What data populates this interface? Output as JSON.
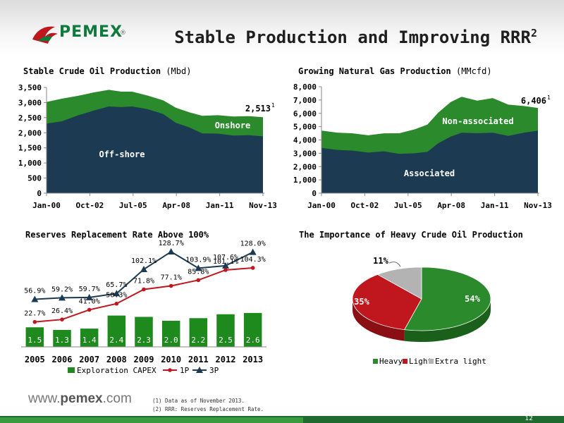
{
  "header": {
    "logo_text": "PEMEX",
    "logo_reg": "®",
    "title": "Stable Production and Improving RRR",
    "title_sup": "2"
  },
  "colors": {
    "navy": "#1c3a52",
    "green": "#2b8a2b",
    "red": "#c0161d",
    "grey": "#b3b3b3",
    "bar_green": "#1e8a1e"
  },
  "chart_data": [
    {
      "id": "crude",
      "type": "area",
      "title": "Stable Crude Oil Production",
      "unit": "(Mbd)",
      "ylim": [
        0,
        3500
      ],
      "yticks": [
        "0",
        "500",
        "1,000",
        "1,500",
        "2,000",
        "2,500",
        "3,000",
        "3,500"
      ],
      "ytick_values": [
        0,
        500,
        1000,
        1500,
        2000,
        2500,
        3000,
        3500
      ],
      "xticks": [
        "Jan-00",
        "Oct-02",
        "Jul-05",
        "Apr-08",
        "Jan-11",
        "Nov-13"
      ],
      "x": [
        2000.0,
        2001.0,
        2002.0,
        2003.0,
        2004.0,
        2004.8,
        2005.5,
        2006.5,
        2007.5,
        2008.3,
        2009.2,
        2010.0,
        2011.0,
        2012.0,
        2013.0,
        2013.9
      ],
      "series": [
        {
          "name": "Off-shore",
          "values": [
            2300,
            2400,
            2550,
            2750,
            2850,
            2870,
            2850,
            2800,
            2600,
            2350,
            2150,
            2000,
            1950,
            1930,
            1900,
            1880
          ]
        },
        {
          "name": "Onshore",
          "values": [
            3020,
            3150,
            3200,
            3350,
            3400,
            3380,
            3340,
            3250,
            3050,
            2850,
            2650,
            2580,
            2560,
            2560,
            2530,
            2513
          ]
        }
      ],
      "annotation": {
        "value": "2,513",
        "sup": "1"
      }
    },
    {
      "id": "gas",
      "type": "area",
      "title": "Growing Natural Gas Production",
      "unit": "(MMcfd)",
      "ylim": [
        0,
        8000
      ],
      "yticks": [
        "0",
        "1,000",
        "2,000",
        "3,000",
        "4,000",
        "5,000",
        "6,000",
        "7,000",
        "8,000"
      ],
      "ytick_values": [
        0,
        1000,
        2000,
        3000,
        4000,
        5000,
        6000,
        7000,
        8000
      ],
      "xticks": [
        "Jan-00",
        "Oct-02",
        "Jul-05",
        "Apr-08",
        "Jan-11",
        "Nov-13"
      ],
      "x": [
        2000.0,
        2001.0,
        2002.0,
        2003.0,
        2004.0,
        2005.0,
        2006.0,
        2006.8,
        2007.5,
        2008.3,
        2009.0,
        2010.0,
        2011.0,
        2012.0,
        2013.0,
        2013.9
      ],
      "series": [
        {
          "name": "Associated",
          "values": [
            3400,
            3300,
            3150,
            3100,
            3100,
            3000,
            2950,
            3150,
            3700,
            4300,
            4500,
            4550,
            4500,
            4350,
            4500,
            4700
          ]
        },
        {
          "name": "Non-associated",
          "values": [
            4700,
            4600,
            4450,
            4400,
            4450,
            4550,
            4750,
            5200,
            6000,
            6900,
            7200,
            7000,
            7100,
            6700,
            6500,
            6406
          ]
        }
      ],
      "annotation": {
        "value": "6,406",
        "sup": "1"
      }
    },
    {
      "id": "rrr",
      "type": "bar",
      "title": "Reserves Replacement Rate Above 100%",
      "categories": [
        "2005",
        "2006",
        "2007",
        "2008",
        "2009",
        "2010",
        "2011",
        "2012",
        "2013"
      ],
      "series": [
        {
          "name": "Exploration CAPEX",
          "kind": "bar",
          "values": [
            1.5,
            1.3,
            1.4,
            2.4,
            2.3,
            2.0,
            2.2,
            2.5,
            2.6
          ],
          "labels": [
            "1.5",
            "1.3",
            "1.4",
            "2.4",
            "2.3",
            "2.0",
            "2.2",
            "2.5",
            "2.6"
          ]
        },
        {
          "name": "1P",
          "kind": "line",
          "values": [
            22.7,
            26.4,
            41.0,
            50.3,
            71.8,
            77.1,
            85.8,
            101.1,
            104.3
          ],
          "labels": [
            "22.7%",
            "26.4%",
            "41.0%",
            "50.3%",
            "71.8%",
            "77.1%",
            "85.8%",
            "101.1%",
            "104.3%"
          ]
        },
        {
          "name": "3P",
          "kind": "line",
          "values": [
            56.9,
            59.2,
            59.7,
            65.7,
            102.1,
            128.7,
            103.9,
            107.6,
            128.0
          ],
          "labels": [
            "56.9%",
            "59.2%",
            "59.7%",
            "65.7%",
            "102.1%",
            "128.7%",
            "103.9%",
            "107.6%",
            "128.0%"
          ]
        }
      ]
    },
    {
      "id": "heavy",
      "type": "pie",
      "title": "The Importance of Heavy Crude Oil Production",
      "labels": [
        "Heavy",
        "Light",
        "Extra light"
      ],
      "values": [
        54,
        35,
        11
      ],
      "slice_labels": [
        "54%",
        "35%",
        "11%"
      ]
    }
  ],
  "footer": {
    "url_pre": "www.",
    "url_bold": "pemex",
    "url_post": ".com",
    "note1": "(1)   Data as of November 2013.",
    "note2": "(2)   RRR: Reserves Replacement Rate.",
    "page_number": "12"
  }
}
